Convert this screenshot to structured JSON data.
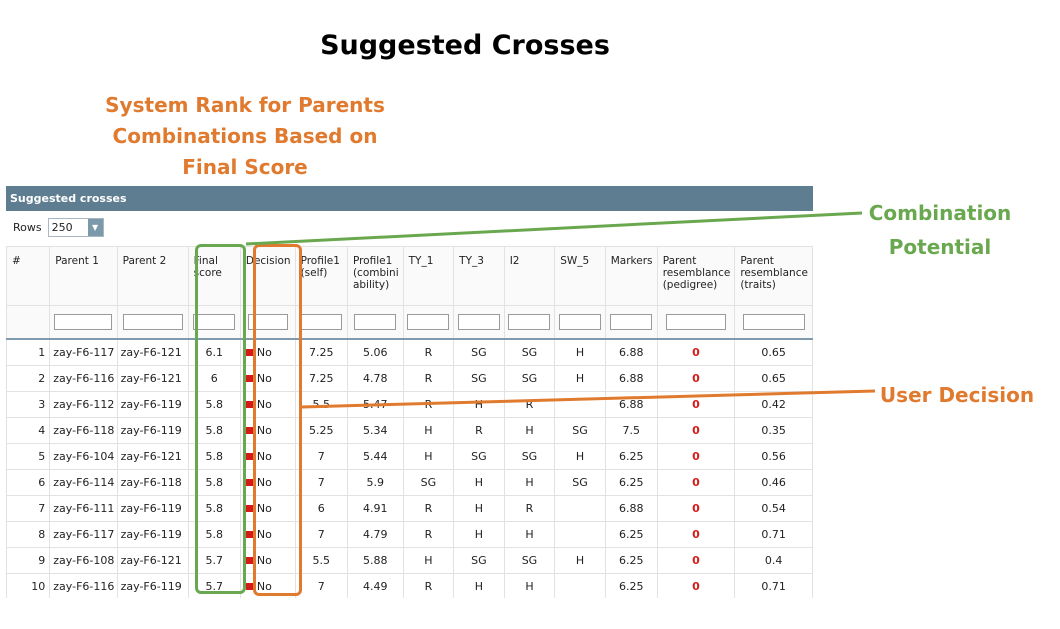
{
  "headline": "Suggested Crosses",
  "rank_note": "System Rank for Parents Combinations Based on Final Score",
  "annotations": {
    "combination_potential": "Combination Potential",
    "user_decision": "User Decision"
  },
  "colors": {
    "green": "#6aa84f",
    "orange": "#e07a2e",
    "header_bar": "#5f7d91",
    "no_marker": "#d51a1a"
  },
  "panel": {
    "title": "Suggested crosses",
    "rows_label": "Rows",
    "rows_value": "250",
    "columns": [
      "#",
      "Parent 1",
      "Parent 2",
      "Final score",
      "Decision",
      "Profile1 (self)",
      "Profile1 (combini ability)",
      "TY_1",
      "TY_3",
      "I2",
      "SW_5",
      "Markers",
      "Parent resemblance (pedigree)",
      "Parent resemblance (traits)"
    ],
    "rows": [
      [
        "1",
        "zay-F6-117",
        "zay-F6-121",
        "6.1",
        "No",
        "7.25",
        "5.06",
        "R",
        "SG",
        "SG",
        "H",
        "6.88",
        "0",
        "0.65"
      ],
      [
        "2",
        "zay-F6-116",
        "zay-F6-121",
        "6",
        "No",
        "7.25",
        "4.78",
        "R",
        "SG",
        "SG",
        "H",
        "6.88",
        "0",
        "0.65"
      ],
      [
        "3",
        "zay-F6-112",
        "zay-F6-119",
        "5.8",
        "No",
        "5.5",
        "5.47",
        "R",
        "H",
        "R",
        "",
        "6.88",
        "0",
        "0.42"
      ],
      [
        "4",
        "zay-F6-118",
        "zay-F6-119",
        "5.8",
        "No",
        "5.25",
        "5.34",
        "H",
        "R",
        "H",
        "SG",
        "7.5",
        "0",
        "0.35"
      ],
      [
        "5",
        "zay-F6-104",
        "zay-F6-121",
        "5.8",
        "No",
        "7",
        "5.44",
        "H",
        "SG",
        "SG",
        "H",
        "6.25",
        "0",
        "0.56"
      ],
      [
        "6",
        "zay-F6-114",
        "zay-F6-118",
        "5.8",
        "No",
        "7",
        "5.9",
        "SG",
        "H",
        "H",
        "SG",
        "6.25",
        "0",
        "0.46"
      ],
      [
        "7",
        "zay-F6-111",
        "zay-F6-119",
        "5.8",
        "No",
        "6",
        "4.91",
        "R",
        "H",
        "R",
        "",
        "6.88",
        "0",
        "0.54"
      ],
      [
        "8",
        "zay-F6-117",
        "zay-F6-119",
        "5.8",
        "No",
        "7",
        "4.79",
        "R",
        "H",
        "H",
        "",
        "6.25",
        "0",
        "0.71"
      ],
      [
        "9",
        "zay-F6-108",
        "zay-F6-121",
        "5.7",
        "No",
        "5.5",
        "5.88",
        "H",
        "SG",
        "SG",
        "H",
        "6.25",
        "0",
        "0.4"
      ],
      [
        "10",
        "zay-F6-116",
        "zay-F6-119",
        "5.7",
        "No",
        "7",
        "4.49",
        "R",
        "H",
        "H",
        "",
        "6.25",
        "0",
        "0.71"
      ]
    ]
  }
}
